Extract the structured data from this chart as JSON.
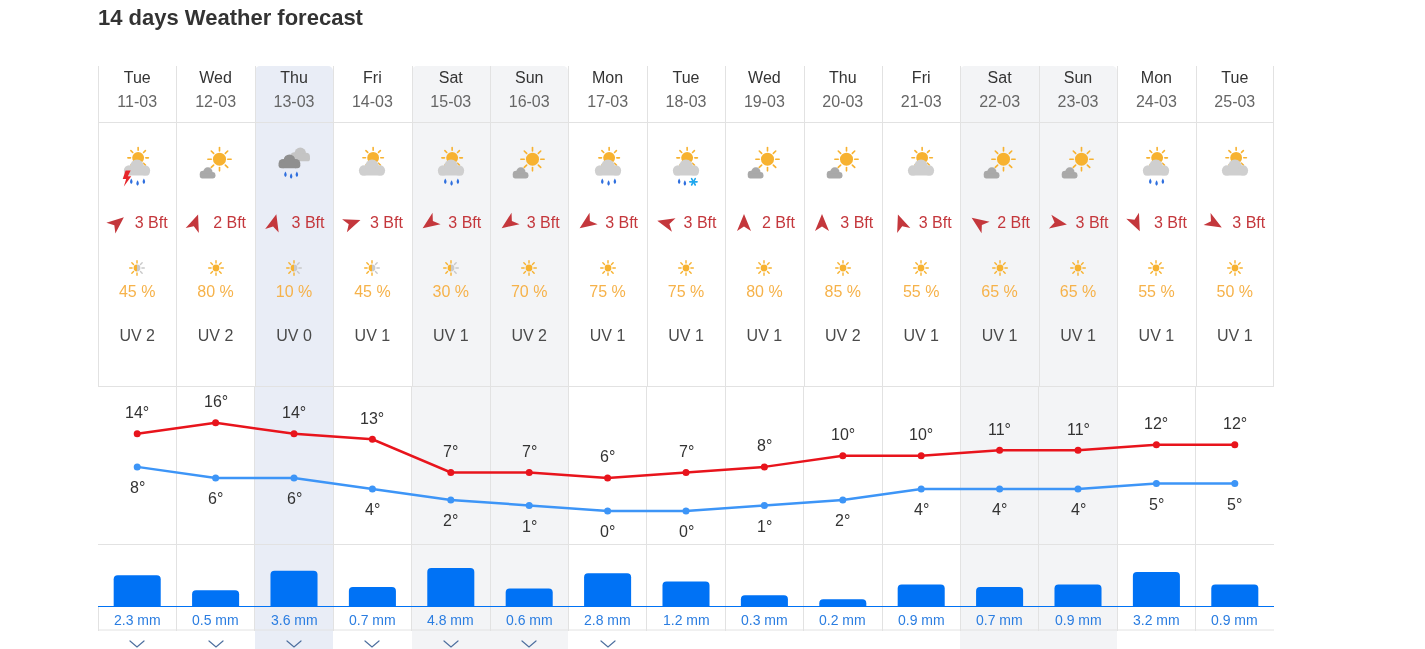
{
  "chart_data": [
    {
      "type": "other",
      "title": "14 days Weather forecast",
      "categories": [
        "Tue 11-03",
        "Wed 12-03",
        "Thu 13-03",
        "Fri 14-03",
        "Sat 15-03",
        "Sun 16-03",
        "Mon 17-03",
        "Tue 18-03",
        "Wed 19-03",
        "Thu 20-03",
        "Fri 21-03",
        "Sat 22-03",
        "Sun 23-03",
        "Mon 24-03",
        "Tue 25-03"
      ],
      "series": [
        {
          "color": "#c4373c",
          "values": [
            3,
            2,
            3,
            3,
            3,
            3,
            3,
            3,
            2,
            3,
            3,
            2,
            3,
            3,
            3
          ],
          "value_labels": [
            "3 Bft",
            "2 Bft",
            "3 Bft",
            "3 Bft",
            "3 Bft",
            "3 Bft",
            "3 Bft",
            "3 Bft",
            "2 Bft",
            "3 Bft",
            "3 Bft",
            "2 Bft",
            "3 Bft",
            "3 Bft",
            "3 Bft"
          ]
        },
        {
          "color": "#f6b24a",
          "values": [
            45,
            80,
            10,
            45,
            30,
            70,
            75,
            75,
            80,
            85,
            55,
            65,
            65,
            55,
            50
          ],
          "value_labels": [
            "45 %",
            "80 %",
            "10 %",
            "45 %",
            "30 %",
            "70 %",
            "75 %",
            "75 %",
            "80 %",
            "85 %",
            "55 %",
            "65 %",
            "65 %",
            "55 %",
            "50 %"
          ]
        },
        {
          "color": "#4a4a4a",
          "values": [
            2,
            2,
            0,
            1,
            1,
            2,
            1,
            1,
            1,
            2,
            1,
            1,
            1,
            1,
            1
          ],
          "value_labels": [
            "UV 2",
            "UV 2",
            "UV 0",
            "UV 1",
            "UV 1",
            "UV 2",
            "UV 1",
            "UV 1",
            "UV 1",
            "UV 2",
            "UV 1",
            "UV 1",
            "UV 1",
            "UV 1",
            "UV 1"
          ]
        }
      ]
    },
    {
      "type": "line",
      "categories": [
        "Tue 11-03",
        "Wed 12-03",
        "Thu 13-03",
        "Fri 14-03",
        "Sat 15-03",
        "Sun 16-03",
        "Mon 17-03",
        "Tue 18-03",
        "Wed 19-03",
        "Thu 20-03",
        "Fri 21-03",
        "Sat 22-03",
        "Sun 23-03",
        "Mon 24-03",
        "Tue 25-03"
      ],
      "series": [
        {
          "color": "#e8141c",
          "values": [
            14,
            16,
            14,
            13,
            7,
            7,
            6,
            7,
            8,
            10,
            10,
            11,
            11,
            12,
            12
          ],
          "value_labels": [
            "14°",
            "16°",
            "14°",
            "13°",
            "7°",
            "7°",
            "6°",
            "7°",
            "8°",
            "10°",
            "10°",
            "11°",
            "11°",
            "12°",
            "12°"
          ]
        },
        {
          "color": "#3d95f7",
          "values": [
            8,
            6,
            6,
            4,
            2,
            1,
            0,
            0,
            1,
            2,
            4,
            4,
            4,
            5,
            5
          ],
          "value_labels": [
            "8°",
            "6°",
            "6°",
            "4°",
            "2°",
            "1°",
            "0°",
            "0°",
            "1°",
            "2°",
            "4°",
            "4°",
            "4°",
            "5°",
            "5°"
          ]
        }
      ],
      "ylim": [
        -6,
        22.5
      ],
      "tick_labels": false,
      "marker": "circle",
      "grid": "x",
      "bands": [
        {
          "axis": "x",
          "from": "Thu 13-03",
          "to": "Thu 13-03",
          "color": "#e9edf6"
        },
        {
          "axis": "x",
          "from": "Sat 15-03",
          "to": "Sun 16-03",
          "color": "#f3f4f6"
        },
        {
          "axis": "x",
          "from": "Sat 22-03",
          "to": "Sun 23-03",
          "color": "#f3f4f6"
        }
      ]
    },
    {
      "type": "bar",
      "categories": [
        "Tue 11-03",
        "Wed 12-03",
        "Thu 13-03",
        "Fri 14-03",
        "Sat 15-03",
        "Sun 16-03",
        "Mon 17-03",
        "Tue 18-03",
        "Wed 19-03",
        "Thu 20-03",
        "Fri 21-03",
        "Sat 22-03",
        "Sun 23-03",
        "Mon 24-03",
        "Tue 25-03"
      ],
      "values": [
        2.3,
        0.5,
        3.6,
        0.7,
        4.8,
        0.6,
        2.8,
        1.2,
        0.3,
        0.2,
        0.9,
        0.7,
        0.9,
        3.2,
        0.9
      ],
      "value_labels": [
        "2.3 mm",
        "0.5 mm",
        "3.6 mm",
        "0.7 mm",
        "4.8 mm",
        "0.6 mm",
        "2.8 mm",
        "1.2 mm",
        "0.3 mm",
        "0.2 mm",
        "0.9 mm",
        "0.7 mm",
        "0.9 mm",
        "3.2 mm",
        "0.9 mm"
      ],
      "color": "#0072f5",
      "ylim": [
        0.1,
        50
      ],
      "log": true,
      "tick_labels": false,
      "grid": "x",
      "bands": [
        {
          "axis": "x",
          "from": "Thu 13-03",
          "to": "Thu 13-03",
          "color": "#e9edf6"
        },
        {
          "axis": "x",
          "from": "Sat 15-03",
          "to": "Sun 16-03",
          "color": "#f3f4f6"
        },
        {
          "axis": "x",
          "from": "Sat 22-03",
          "to": "Sun 23-03",
          "color": "#f3f4f6"
        }
      ]
    }
  ]
}
